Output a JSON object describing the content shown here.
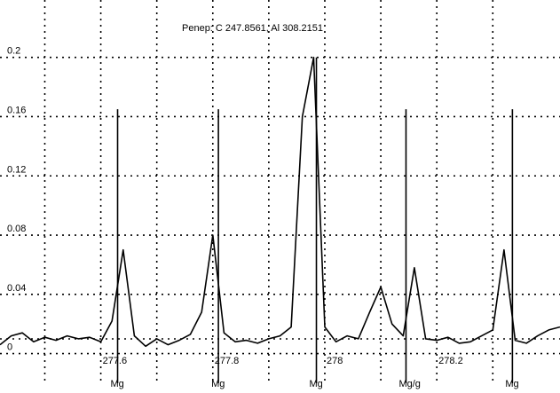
{
  "chart_data": {
    "type": "line",
    "title": "Penep: C  247.8561, Al  308.2151",
    "xlabel": "",
    "ylabel": "",
    "xlim": [
      277.42,
      278.42
    ],
    "ylim": [
      -0.02,
      0.21
    ],
    "x_ticks": [
      {
        "value": 277.6,
        "label": "277.6"
      },
      {
        "value": 277.8,
        "label": "277.8"
      },
      {
        "value": 278.0,
        "label": "278"
      },
      {
        "value": 278.2,
        "label": "278.2"
      }
    ],
    "y_ticks": [
      {
        "value": 0.2,
        "label": "0.2"
      },
      {
        "value": 0.16,
        "label": "0.16"
      },
      {
        "value": 0.12,
        "label": "0.12"
      },
      {
        "value": 0.08,
        "label": "0.08"
      },
      {
        "value": 0.04,
        "label": "0.04"
      },
      {
        "value": 0,
        "label": "0"
      }
    ],
    "grid": true,
    "series": [
      {
        "x": [
          277.42,
          277.44,
          277.46,
          277.48,
          277.5,
          277.52,
          277.54,
          277.56,
          277.58,
          277.6,
          277.62,
          277.64,
          277.66,
          277.68,
          277.7,
          277.72,
          277.74,
          277.76,
          277.78,
          277.8,
          277.82,
          277.84,
          277.86,
          277.88,
          277.9,
          277.92,
          277.94,
          277.96,
          277.98,
          278.0,
          278.02,
          278.04,
          278.06,
          278.08,
          278.1,
          278.12,
          278.14,
          278.16,
          278.18,
          278.2,
          278.22,
          278.24,
          278.26,
          278.28,
          278.3,
          278.32,
          278.34,
          278.36,
          278.38,
          278.4,
          278.42
        ],
        "y": [
          0.006,
          0.012,
          0.014,
          0.008,
          0.011,
          0.009,
          0.012,
          0.01,
          0.011,
          0.008,
          0.022,
          0.07,
          0.012,
          0.005,
          0.01,
          0.006,
          0.009,
          0.013,
          0.028,
          0.08,
          0.014,
          0.008,
          0.009,
          0.007,
          0.01,
          0.012,
          0.018,
          0.16,
          0.2,
          0.018,
          0.008,
          0.012,
          0.01,
          0.028,
          0.045,
          0.02,
          0.012,
          0.058,
          0.01,
          0.009,
          0.011,
          0.007,
          0.008,
          0.012,
          0.016,
          0.07,
          0.009,
          0.007,
          0.012,
          0.016,
          0.018
        ]
      }
    ],
    "lines": [
      {
        "label": "Mg",
        "x": 277.63,
        "y_top": 0.165
      },
      {
        "label": "Mg",
        "x": 277.81,
        "y_top": 0.165
      },
      {
        "label": "Mg",
        "x": 277.985,
        "y_top": 0.2
      },
      {
        "label": "Mg/g",
        "x": 278.145,
        "y_top": 0.165
      },
      {
        "label": "Mg",
        "x": 278.335,
        "y_top": 0.165
      }
    ]
  }
}
